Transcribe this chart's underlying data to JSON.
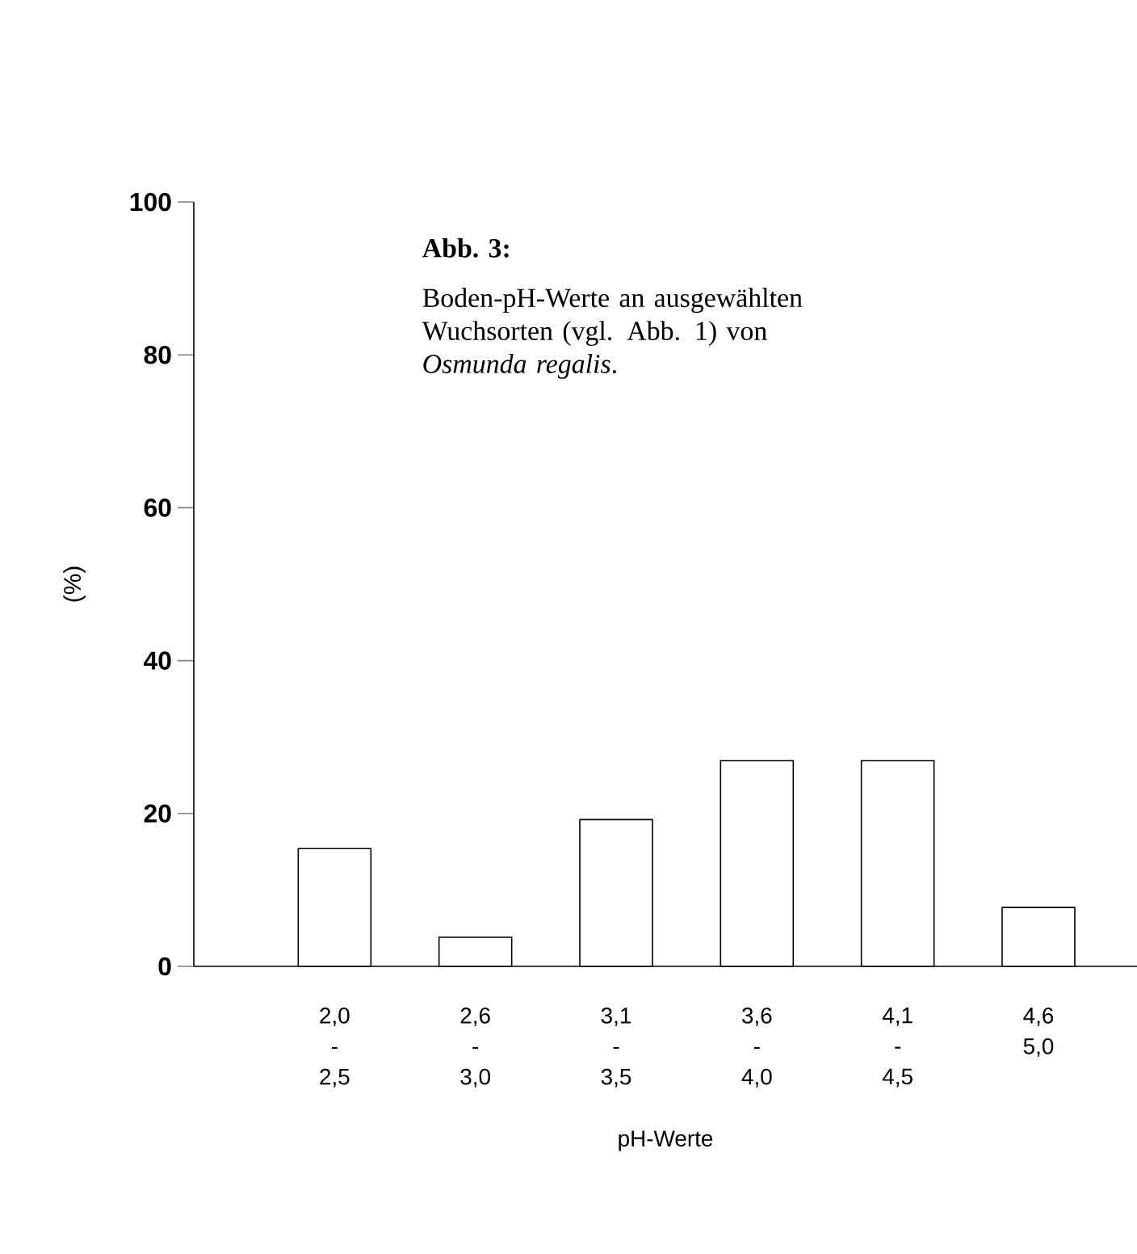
{
  "chart_data": {
    "type": "bar",
    "title": "Abb. 3:",
    "subtitle": "Boden-pH-Werte an ausgewählten Wuchsorten (vgl. Abb. 1) von *Osmunda regalis*.",
    "categories": [
      "2,0 - 2,5",
      "2,6 - 3,0",
      "3,1 - 3,5",
      "3,6 - 4,0",
      "4,1 - 4,5",
      "4,6 5,0"
    ],
    "values": [
      15.4,
      3.8,
      19.2,
      26.9,
      26.9,
      7.7
    ],
    "color": "#ffffff",
    "ylim": [
      0,
      100
    ],
    "yticks": [
      0,
      20,
      40,
      60,
      80,
      100
    ],
    "xlabel": "pH-Werte",
    "ylabel": "(%)"
  }
}
